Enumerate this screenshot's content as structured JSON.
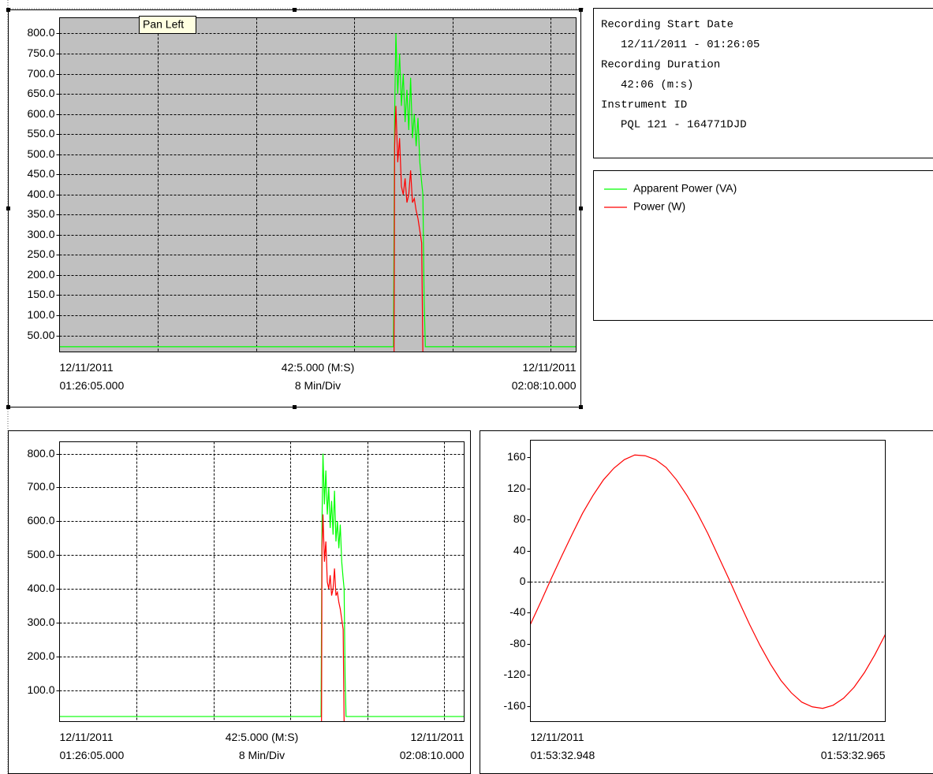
{
  "tooltip": "Pan Left",
  "info": [
    "Recording Start Date",
    "12/11/2011 - 01:26:05",
    "Recording Duration",
    "42:06 (m:s)",
    "Instrument ID",
    "PQL 121 - 164771DJD"
  ],
  "chart_data": [
    {
      "type": "line",
      "background": "#c0c0c0",
      "grid": true,
      "xlim": [
        0,
        42.083
      ],
      "xticks": [
        8,
        16,
        24,
        32,
        40
      ],
      "ylim": [
        9,
        839
      ],
      "yticks": [
        {
          "value": 50,
          "label": "50.00"
        },
        {
          "value": 100,
          "label": "100.0"
        },
        {
          "value": 150,
          "label": "150.0"
        },
        {
          "value": 200,
          "label": "200.0"
        },
        {
          "value": 250,
          "label": "250.0"
        },
        {
          "value": 300,
          "label": "300.0"
        },
        {
          "value": 350,
          "label": "350.0"
        },
        {
          "value": 400,
          "label": "400.0"
        },
        {
          "value": 450,
          "label": "450.0"
        },
        {
          "value": 500,
          "label": "500.0"
        },
        {
          "value": 550,
          "label": "550.0"
        },
        {
          "value": 600,
          "label": "600.0"
        },
        {
          "value": 650,
          "label": "650.0"
        },
        {
          "value": 700,
          "label": "700.0"
        },
        {
          "value": 750,
          "label": "750.0"
        },
        {
          "value": 800,
          "label": "800.0"
        }
      ],
      "x_left": [
        "12/11/2011",
        "01:26:05.000"
      ],
      "x_center": [
        "42:5.000 (M:S)",
        "8 Min/Div"
      ],
      "x_right": [
        "12/11/2011",
        "02:08:10.000"
      ],
      "series": [
        {
          "name": "Apparent Power (VA)",
          "color": "#00ff00",
          "x": [
            0,
            27.2,
            27.3,
            27.4,
            27.55,
            27.7,
            27.85,
            28.0,
            28.15,
            28.3,
            28.45,
            28.6,
            28.75,
            28.9,
            29.05,
            29.2,
            29.35,
            29.5,
            29.6,
            29.7,
            29.8,
            42.083
          ],
          "values": [
            22,
            22,
            600,
            800,
            650,
            750,
            620,
            700,
            580,
            660,
            560,
            690,
            540,
            600,
            520,
            590,
            480,
            430,
            400,
            140,
            22,
            22
          ]
        },
        {
          "name": "Power (W)",
          "color": "#ff0000",
          "x": [
            27.25,
            27.3,
            27.4,
            27.55,
            27.7,
            27.85,
            28.0,
            28.15,
            28.3,
            28.45,
            28.6,
            28.75,
            28.9,
            29.05,
            29.2,
            29.35,
            29.5,
            29.6
          ],
          "values": [
            0,
            520,
            620,
            480,
            540,
            420,
            400,
            440,
            380,
            400,
            460,
            380,
            390,
            360,
            340,
            310,
            280,
            0
          ]
        }
      ]
    },
    {
      "type": "line",
      "background": "#ffffff",
      "grid": true,
      "xlim": [
        0,
        42.083
      ],
      "xticks": [
        8,
        16,
        24,
        32,
        40
      ],
      "ylim": [
        7,
        835
      ],
      "yticks": [
        {
          "value": 100,
          "label": "100.0"
        },
        {
          "value": 200,
          "label": "200.0"
        },
        {
          "value": 300,
          "label": "300.0"
        },
        {
          "value": 400,
          "label": "400.0"
        },
        {
          "value": 500,
          "label": "500.0"
        },
        {
          "value": 600,
          "label": "600.0"
        },
        {
          "value": 700,
          "label": "700.0"
        },
        {
          "value": 800,
          "label": "800.0"
        }
      ],
      "x_left": [
        "12/11/2011",
        "01:26:05.000"
      ],
      "x_center": [
        "42:5.000 (M:S)",
        "8 Min/Div"
      ],
      "x_right": [
        "12/11/2011",
        "02:08:10.000"
      ],
      "series": [
        {
          "color": "#00ff00",
          "x": [
            0,
            27.2,
            27.3,
            27.4,
            27.55,
            27.7,
            27.85,
            28.0,
            28.15,
            28.3,
            28.45,
            28.6,
            28.75,
            28.9,
            29.05,
            29.2,
            29.35,
            29.5,
            29.6,
            29.7,
            29.8,
            42.083
          ],
          "values": [
            22,
            22,
            600,
            800,
            650,
            750,
            620,
            700,
            580,
            660,
            560,
            690,
            540,
            600,
            520,
            590,
            480,
            430,
            400,
            140,
            22,
            22
          ]
        },
        {
          "color": "#ff0000",
          "x": [
            27.25,
            27.3,
            27.4,
            27.55,
            27.7,
            27.85,
            28.0,
            28.15,
            28.3,
            28.45,
            28.6,
            28.75,
            28.9,
            29.05,
            29.2,
            29.35,
            29.5,
            29.6
          ],
          "values": [
            0,
            520,
            620,
            480,
            540,
            420,
            400,
            440,
            380,
            400,
            460,
            380,
            390,
            360,
            340,
            310,
            280,
            0
          ]
        }
      ]
    },
    {
      "type": "line",
      "background": "#ffffff",
      "grid": false,
      "ygrid": [
        0
      ],
      "xlim": [
        0,
        17
      ],
      "xticks": [],
      "ylim": [
        -180,
        182
      ],
      "yticks": [
        -160,
        -120,
        -80,
        -40,
        0,
        40,
        80,
        120,
        160
      ],
      "x_left": [
        "12/11/2011",
        "01:53:32.948"
      ],
      "x_right": [
        "12/11/2011",
        "01:53:32.965"
      ],
      "series": [
        {
          "color": "#ff0000",
          "x": [
            0,
            0.5,
            1,
            1.5,
            2,
            2.5,
            3,
            3.5,
            4,
            4.5,
            5,
            5.5,
            6,
            6.5,
            7,
            7.5,
            8,
            8.5,
            9,
            9.5,
            10,
            10.5,
            11,
            11.5,
            12,
            12.5,
            13,
            13.5,
            14,
            14.5,
            15,
            15.5,
            16,
            16.5,
            17
          ],
          "values": [
            -55,
            -26,
            4,
            33,
            61,
            88,
            111,
            131,
            146,
            157,
            163,
            162,
            157,
            147,
            131,
            111,
            88,
            62,
            33,
            4,
            -26,
            -55,
            -82,
            -106,
            -127,
            -143,
            -155,
            -161,
            -163,
            -159,
            -150,
            -136,
            -117,
            -94,
            -68
          ]
        }
      ]
    }
  ]
}
